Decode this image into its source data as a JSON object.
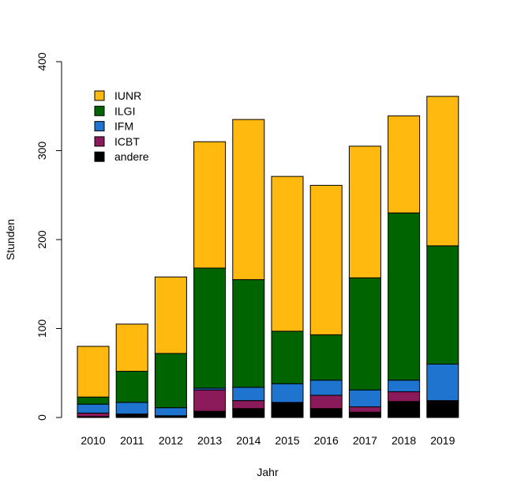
{
  "chart_data": {
    "type": "bar",
    "stacked": true,
    "title": "",
    "xlabel": "Jahr",
    "ylabel": "Stunden",
    "ylim": [
      0,
      400
    ],
    "yticks": [
      0,
      100,
      200,
      300,
      400
    ],
    "grid": false,
    "legend_position": "top-left",
    "categories": [
      "2010",
      "2011",
      "2012",
      "2013",
      "2014",
      "2015",
      "2016",
      "2017",
      "2018",
      "2019"
    ],
    "series": [
      {
        "name": "andere",
        "color": "#000000",
        "values": [
          1,
          3,
          2,
          7,
          10,
          17,
          10,
          6,
          18,
          19
        ]
      },
      {
        "name": "ICBT",
        "color": "#8b1a5a",
        "values": [
          4,
          1,
          0,
          24,
          9,
          0,
          15,
          6,
          11,
          0
        ]
      },
      {
        "name": "IFM",
        "color": "#1f74d0",
        "values": [
          10,
          13,
          9,
          2,
          15,
          21,
          17,
          19,
          13,
          41
        ]
      },
      {
        "name": "ILGI",
        "color": "#006400",
        "values": [
          8,
          35,
          61,
          135,
          121,
          59,
          51,
          126,
          188,
          133
        ]
      },
      {
        "name": "IUNR",
        "color": "#ffb90f",
        "values": [
          57,
          53,
          86,
          142,
          180,
          174,
          168,
          148,
          109,
          168
        ]
      }
    ],
    "legend_order": [
      "IUNR",
      "ILGI",
      "IFM",
      "ICBT",
      "andere"
    ]
  }
}
